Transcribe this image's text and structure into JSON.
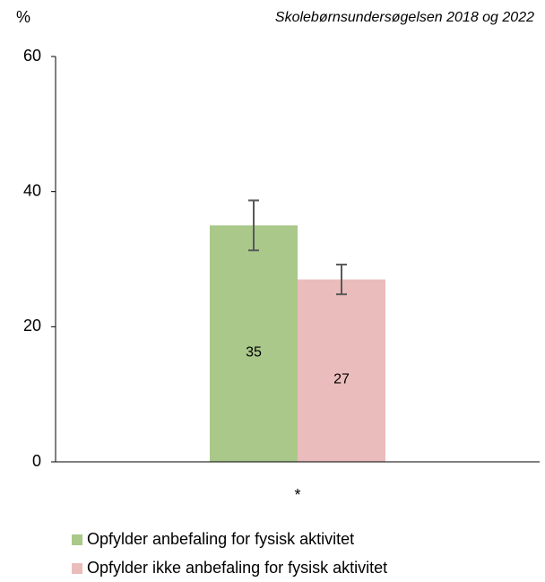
{
  "chart_data": {
    "type": "bar",
    "subtitle": "Skolebørnsundersøgelsen 2018 og 2022",
    "y_label": "%",
    "categories": [
      "*"
    ],
    "series": [
      {
        "name": "Opfylder anbefaling for fysisk aktivitet",
        "color": "#a9c88a",
        "values": [
          35
        ],
        "errors": [
          3.7
        ]
      },
      {
        "name": "Opfylder ikke anbefaling for fysisk aktivitet",
        "color": "#ebbcbc",
        "values": [
          27
        ],
        "errors": [
          2.2
        ]
      }
    ],
    "ylim": [
      0,
      60
    ],
    "yticks": [
      0,
      20,
      40,
      60
    ],
    "data_labels": true
  }
}
